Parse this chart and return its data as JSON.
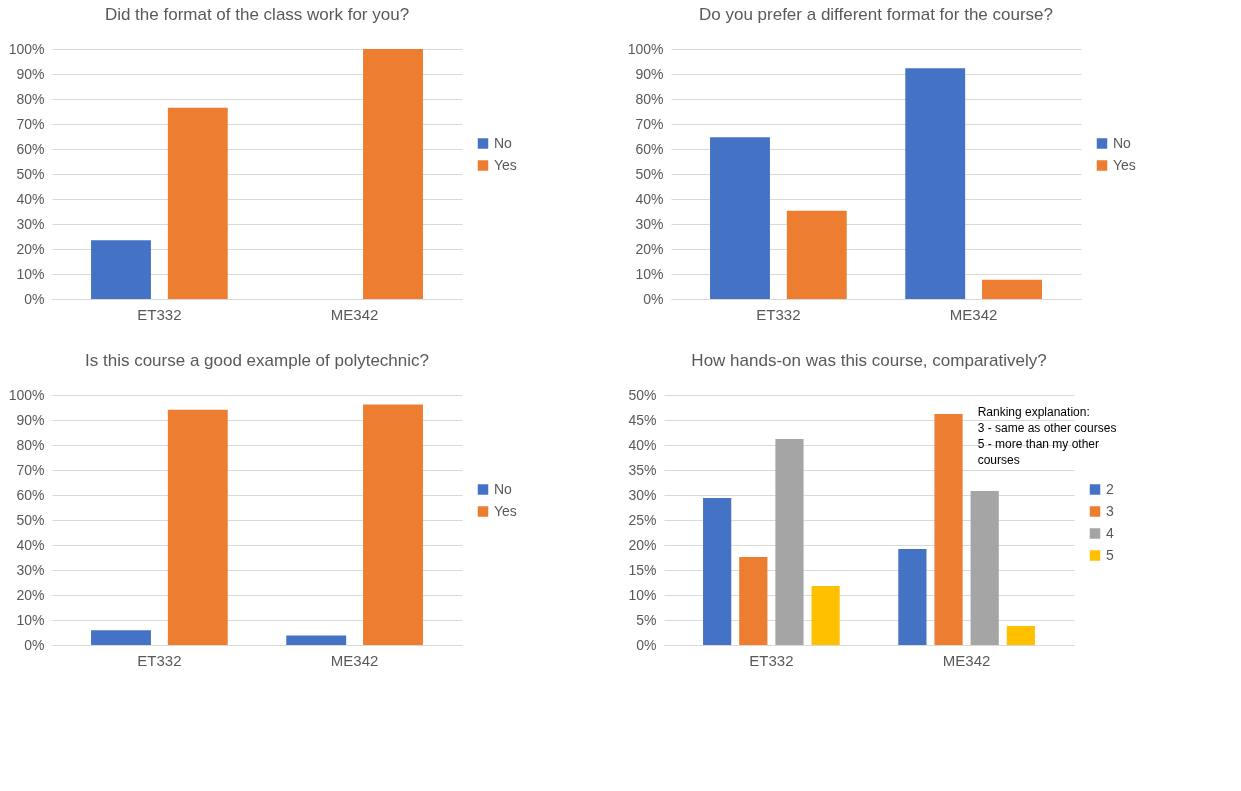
{
  "chart_data": [
    {
      "type": "bar",
      "title": "Did the format of the class work for you?",
      "categories": [
        "ET332",
        "ME342"
      ],
      "series": [
        {
          "name": "No",
          "color": "#4472c4",
          "values": [
            23.5,
            0
          ]
        },
        {
          "name": "Yes",
          "color": "#ed7d31",
          "values": [
            76.5,
            100
          ]
        }
      ],
      "ylim": [
        0,
        100
      ],
      "yticks": [
        {
          "value": 0,
          "label": "0%"
        },
        {
          "value": 10,
          "label": "10%"
        },
        {
          "value": 20,
          "label": "20%"
        },
        {
          "value": 30,
          "label": "30%"
        },
        {
          "value": 40,
          "label": "40%"
        },
        {
          "value": 50,
          "label": "50%"
        },
        {
          "value": 60,
          "label": "60%"
        },
        {
          "value": 70,
          "label": "70%"
        },
        {
          "value": 80,
          "label": "80%"
        },
        {
          "value": 90,
          "label": "90%"
        },
        {
          "value": 100,
          "label": "100%"
        }
      ],
      "grid": "y",
      "legend": "right"
    },
    {
      "type": "bar",
      "title": "Do you prefer a different format for the course?",
      "categories": [
        "ET332",
        "ME342"
      ],
      "series": [
        {
          "name": "No",
          "color": "#4472c4",
          "values": [
            64.7,
            92.3
          ]
        },
        {
          "name": "Yes",
          "color": "#ed7d31",
          "values": [
            35.3,
            7.7
          ]
        }
      ],
      "ylim": [
        0,
        100
      ],
      "yticks": [
        {
          "value": 0,
          "label": "0%"
        },
        {
          "value": 10,
          "label": "10%"
        },
        {
          "value": 20,
          "label": "20%"
        },
        {
          "value": 30,
          "label": "30%"
        },
        {
          "value": 40,
          "label": "40%"
        },
        {
          "value": 50,
          "label": "50%"
        },
        {
          "value": 60,
          "label": "60%"
        },
        {
          "value": 70,
          "label": "70%"
        },
        {
          "value": 80,
          "label": "80%"
        },
        {
          "value": 90,
          "label": "90%"
        },
        {
          "value": 100,
          "label": "100%"
        }
      ],
      "grid": "y",
      "legend": "right"
    },
    {
      "type": "bar",
      "title": "Is this course a good example of polytechnic?",
      "categories": [
        "ET332",
        "ME342"
      ],
      "series": [
        {
          "name": "No",
          "color": "#4472c4",
          "values": [
            5.9,
            3.8
          ]
        },
        {
          "name": "Yes",
          "color": "#ed7d31",
          "values": [
            94.1,
            96.2
          ]
        }
      ],
      "ylim": [
        0,
        100
      ],
      "yticks": [
        {
          "value": 0,
          "label": "0%"
        },
        {
          "value": 10,
          "label": "10%"
        },
        {
          "value": 20,
          "label": "20%"
        },
        {
          "value": 30,
          "label": "30%"
        },
        {
          "value": 40,
          "label": "40%"
        },
        {
          "value": 50,
          "label": "50%"
        },
        {
          "value": 60,
          "label": "60%"
        },
        {
          "value": 70,
          "label": "70%"
        },
        {
          "value": 80,
          "label": "80%"
        },
        {
          "value": 90,
          "label": "90%"
        },
        {
          "value": 100,
          "label": "100%"
        }
      ],
      "grid": "y",
      "legend": "right"
    },
    {
      "type": "bar",
      "title": "How hands-on was this course, comparatively?",
      "categories": [
        "ET332",
        "ME342"
      ],
      "series": [
        {
          "name": "2",
          "color": "#4472c4",
          "values": [
            29.4,
            19.2
          ]
        },
        {
          "name": "3",
          "color": "#ed7d31",
          "values": [
            17.6,
            46.2
          ]
        },
        {
          "name": "4",
          "color": "#a5a5a5",
          "values": [
            41.2,
            30.8
          ]
        },
        {
          "name": "5",
          "color": "#ffc000",
          "values": [
            11.8,
            3.8
          ]
        }
      ],
      "ylim": [
        0,
        50
      ],
      "yticks": [
        {
          "value": 0,
          "label": "0%"
        },
        {
          "value": 5,
          "label": "5%"
        },
        {
          "value": 10,
          "label": "10%"
        },
        {
          "value": 15,
          "label": "15%"
        },
        {
          "value": 20,
          "label": "20%"
        },
        {
          "value": 25,
          "label": "25%"
        },
        {
          "value": 30,
          "label": "30%"
        },
        {
          "value": 35,
          "label": "35%"
        },
        {
          "value": 40,
          "label": "40%"
        },
        {
          "value": 45,
          "label": "45%"
        },
        {
          "value": 50,
          "label": "50%"
        }
      ],
      "grid": "y",
      "legend": "right",
      "annotations": [
        "Ranking explanation:\n3 - same as other courses\n5 - more than my other courses"
      ]
    }
  ]
}
